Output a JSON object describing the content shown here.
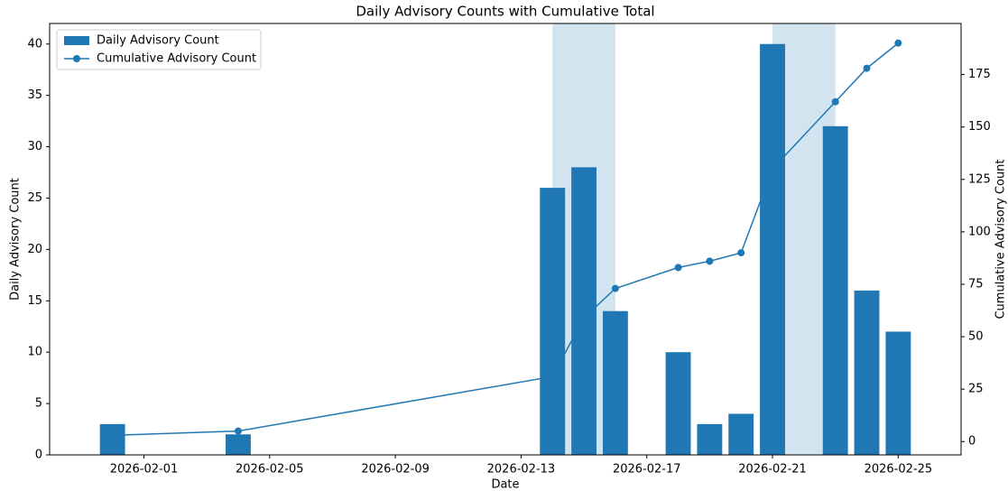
{
  "chart_data": {
    "type": "bar",
    "title": "Daily Advisory Counts with Cumulative Total",
    "x_label": "Date",
    "y_label": "Daily Advisory Count",
    "y2_label": "Cumulative Advisory Count",
    "x": [
      "2026-01-31",
      "2026-02-04",
      "2026-02-14",
      "2026-02-15",
      "2026-02-16",
      "2026-02-18",
      "2026-02-19",
      "2026-02-20",
      "2026-02-21",
      "2026-02-23",
      "2026-02-24",
      "2026-02-25"
    ],
    "series": [
      {
        "name": "Daily Advisory Count",
        "type": "bar",
        "color": "#1f77b4",
        "values": [
          3,
          2,
          26,
          28,
          14,
          10,
          3,
          4,
          40,
          32,
          16,
          12
        ]
      },
      {
        "name": "Cumulative Advisory Count",
        "type": "line",
        "axis": "y2",
        "color": "#1f77b4",
        "values": [
          3,
          5,
          31,
          59,
          73,
          83,
          86,
          90,
          130,
          162,
          178,
          190
        ]
      }
    ],
    "spans": [
      {
        "start": "2026-02-14",
        "end": "2026-02-16",
        "color": "#1f77b4"
      },
      {
        "start": "2026-02-21",
        "end": "2026-02-23",
        "color": "#1f77b4"
      }
    ],
    "xlim": [
      "2026-01-29",
      "2026-02-27"
    ],
    "xticks": [
      "2026-02-01",
      "2026-02-05",
      "2026-02-09",
      "2026-02-13",
      "2026-02-17",
      "2026-02-21",
      "2026-02-25"
    ],
    "ylim": [
      0,
      42
    ],
    "yticks": [
      0,
      5,
      10,
      15,
      20,
      25,
      30,
      35,
      40
    ],
    "y2lim": [
      -6.35,
      199.35
    ],
    "y2ticks": [
      0,
      25,
      50,
      75,
      100,
      125,
      150,
      175
    ],
    "legend": "upper left"
  }
}
